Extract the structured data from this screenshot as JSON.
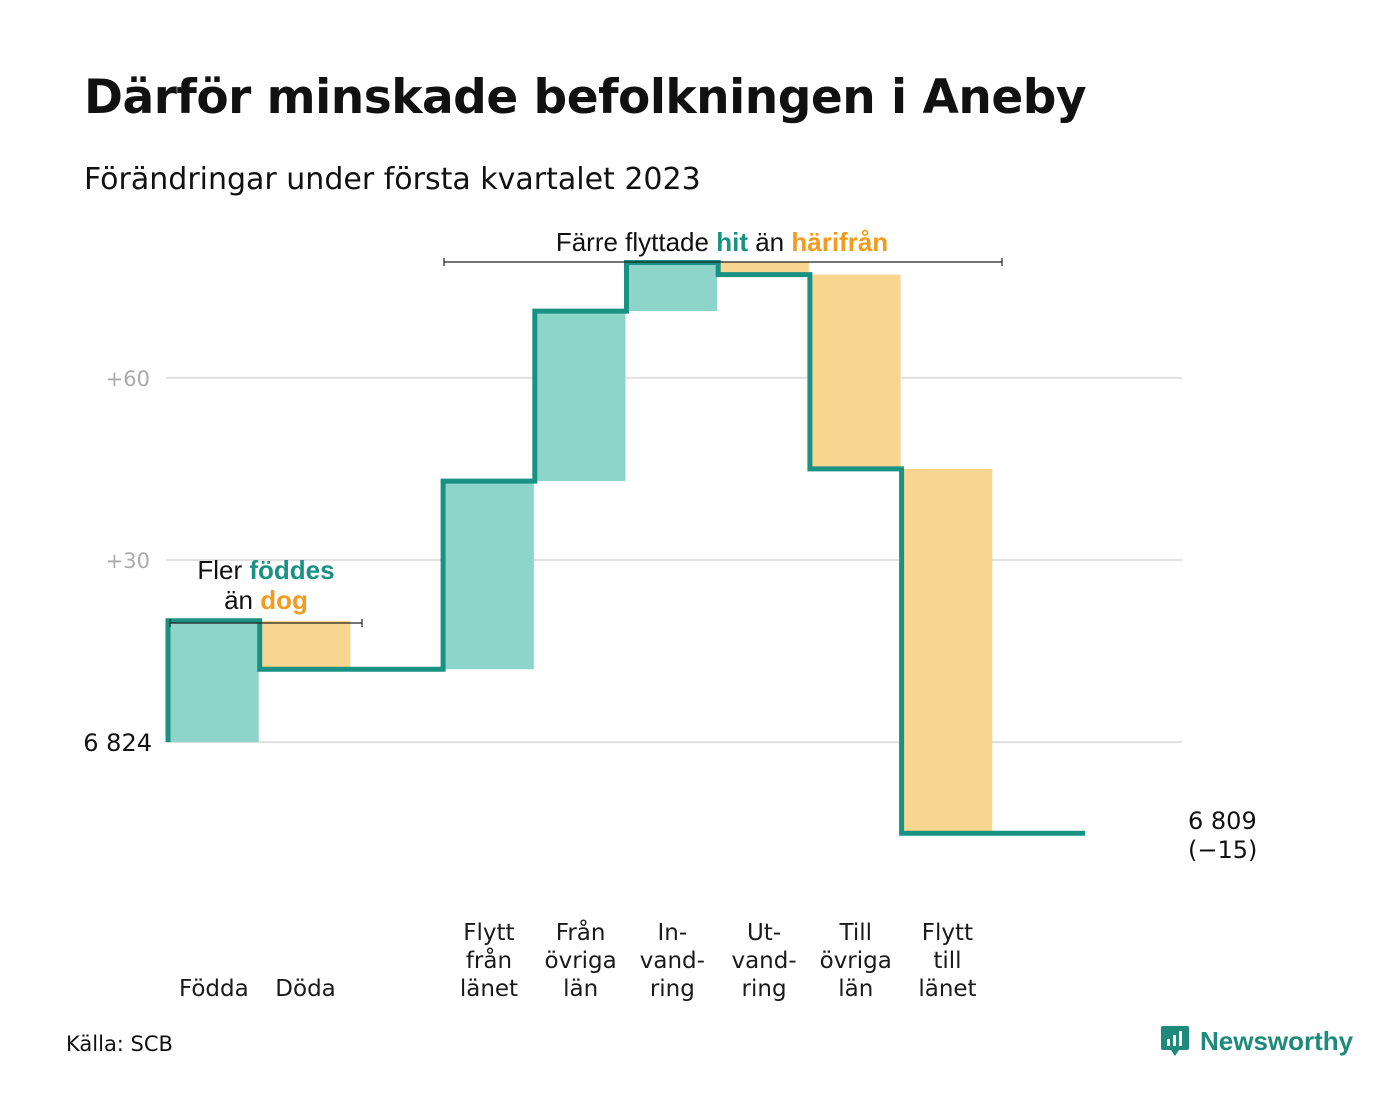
{
  "title": "Därför minskade befolkningen i Aneby",
  "subtitle": "Förändringar under första kvartalet 2023",
  "source": "Källa: SCB",
  "brand": "Newsworthy",
  "icons": {
    "brand": "newsworthy-logo-icon"
  },
  "colors": {
    "increase": "#8dd4ca",
    "decrease": "#f9d68f",
    "line": "#1a9283",
    "accent_teal": "#1a9283",
    "accent_orange": "#f39b1f",
    "grid": "#e0e0e0",
    "tick_text": "#aaaaaa"
  },
  "annotations": {
    "natural": {
      "prefix": "Fler ",
      "hit": "föddes",
      "middle": "än ",
      "away": "dog"
    },
    "migration": {
      "prefix": "Färre flyttade ",
      "hit": "hit",
      "middle": " än ",
      "away": "härifrån"
    }
  },
  "chart_data": {
    "type": "waterfall",
    "start_label": "6 824",
    "start_value": 6824,
    "end_label_value": "6 809",
    "end_label_change": "(−15)",
    "end_value": 6809,
    "ylim_change": [
      -26,
      86
    ],
    "yticks": [
      {
        "value": 60,
        "label": "+60"
      },
      {
        "value": 30,
        "label": "+30"
      },
      {
        "value": 0,
        "label": ""
      }
    ],
    "grid": true,
    "steps": [
      {
        "label": [
          "Födda"
        ],
        "change": 20
      },
      {
        "label": [
          "Döda"
        ],
        "change": -8
      },
      {
        "label": [],
        "change": 0
      },
      {
        "label": [
          "Flytt",
          "från",
          "länet"
        ],
        "change": 31
      },
      {
        "label": [
          "Från",
          "övriga",
          "län"
        ],
        "change": 28
      },
      {
        "label": [
          "In-",
          "vand-",
          "ring"
        ],
        "change": 8
      },
      {
        "label": [
          "Ut-",
          "vand-",
          "ring"
        ],
        "change": -2
      },
      {
        "label": [
          "Till",
          "övriga",
          "län"
        ],
        "change": -32
      },
      {
        "label": [
          "Flytt",
          "till",
          "länet"
        ],
        "change": -60
      },
      {
        "label": [],
        "change": 0
      }
    ]
  }
}
